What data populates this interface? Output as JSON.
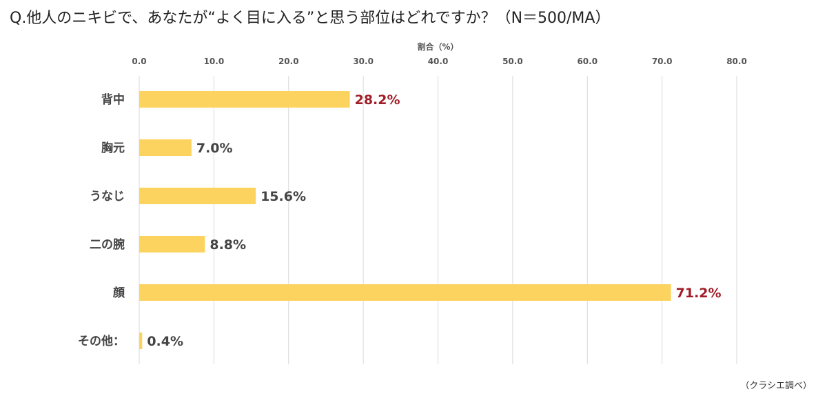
{
  "header": {
    "question": "Q.他人のニキビで、あなたが“よく目に入る”と思う部位はどれですか？（N＝500/MA）"
  },
  "footer": {
    "source": "（クラシエ調べ）"
  },
  "colors": {
    "bar": "#fdd35f",
    "highlight_label": "#a11d26",
    "normal_label": "#444444",
    "grid": "#d9d9d9"
  },
  "chart_data": {
    "type": "bar",
    "orientation": "horizontal",
    "axis_title": "割合（%）",
    "categories": [
      "背中",
      "胸元",
      "うなじ",
      "二の腕",
      "顔",
      "その他："
    ],
    "values": [
      28.2,
      7.0,
      15.6,
      8.8,
      71.2,
      0.4
    ],
    "value_labels": [
      "28.2%",
      "7.0%",
      "15.6%",
      "8.8%",
      "71.2%",
      "0.4%"
    ],
    "highlighted": [
      true,
      false,
      false,
      false,
      true,
      false
    ],
    "xlim": [
      0,
      80
    ],
    "ticks": [
      0,
      10,
      20,
      30,
      40,
      50,
      60,
      70,
      80
    ],
    "tick_labels": [
      "0.0",
      "10.0",
      "20.0",
      "30.0",
      "40.0",
      "50.0",
      "60.0",
      "70.0",
      "80.0"
    ],
    "axis_position": "top",
    "grid": true
  }
}
